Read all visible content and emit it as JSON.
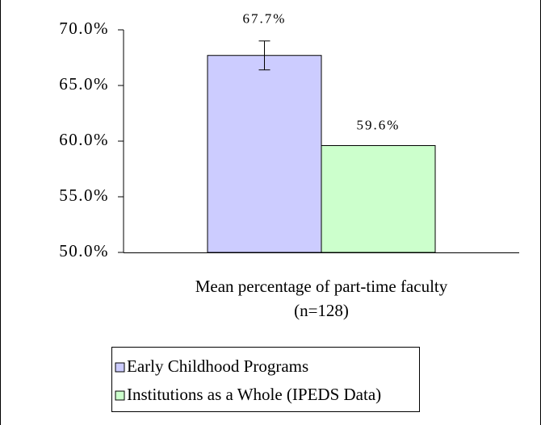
{
  "chart_data": {
    "type": "bar",
    "categories": [
      "Mean percentage of part-time faculty\n(n=128)"
    ],
    "series": [
      {
        "name": "Early Childhood Programs",
        "color": "#ccccff",
        "values": [
          67.7
        ],
        "value_labels": [
          "67.7%"
        ],
        "errors": [
          1.3
        ]
      },
      {
        "name": "Institutions as a Whole (IPEDS Data)",
        "color": "#ccffcc",
        "values": [
          59.6
        ],
        "value_labels": [
          "59.6%"
        ]
      }
    ],
    "ylim": [
      50,
      70
    ],
    "yticks": [
      {
        "value": 50,
        "label": "50.0%"
      },
      {
        "value": 55,
        "label": "55.0%"
      },
      {
        "value": 60,
        "label": "60.0%"
      },
      {
        "value": 65,
        "label": "65.0%"
      },
      {
        "value": 70,
        "label": "70.0%"
      }
    ],
    "grid": false,
    "legend": "bottom"
  }
}
